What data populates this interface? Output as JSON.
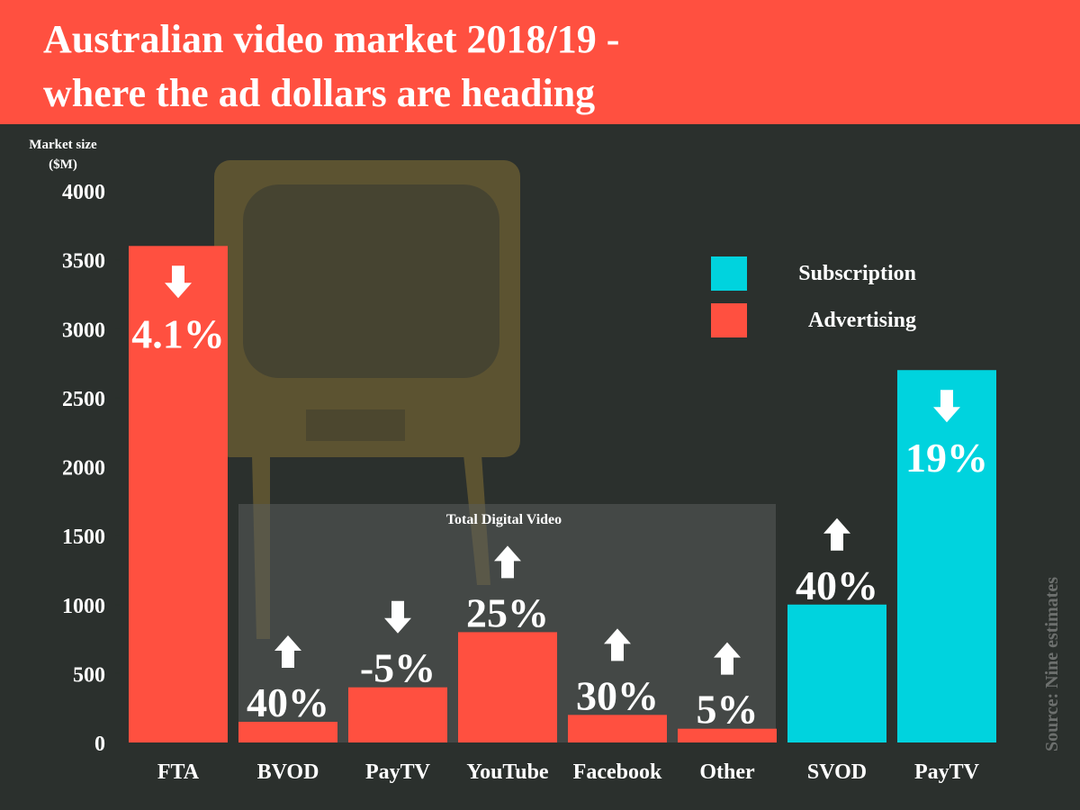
{
  "chart_data": {
    "type": "bar",
    "title": [
      "Australian video market 2018/19 -",
      "where the ad dollars are heading"
    ],
    "y_axis_label": "Market size ($M)",
    "categories": [
      "FTA",
      "BVOD",
      "PayTV",
      "YouTube",
      "Facebook",
      "Other",
      "SVOD",
      "PayTV"
    ],
    "series": [
      {
        "name": "Subscription",
        "color": "#00d3de",
        "values": [
          null,
          null,
          null,
          null,
          null,
          null,
          1000,
          2700
        ]
      },
      {
        "name": "Advertising",
        "color": "#ff5040",
        "values": [
          3600,
          150,
          400,
          800,
          200,
          100,
          null,
          null
        ]
      }
    ],
    "change_labels": [
      "4.1%",
      "40%",
      "-5%",
      "25%",
      "30%",
      "5%",
      "40%",
      "19%"
    ],
    "change_directions": [
      "down",
      "up",
      "down",
      "up",
      "up",
      "up",
      "up",
      "down"
    ],
    "annotation": "Total Digital Video",
    "source": "Source: Nine estimates",
    "ylim": [
      0,
      4000
    ],
    "yticks": [
      0,
      500,
      1000,
      1500,
      2000,
      2500,
      3000,
      3500,
      4000
    ],
    "legend": "top-right"
  }
}
